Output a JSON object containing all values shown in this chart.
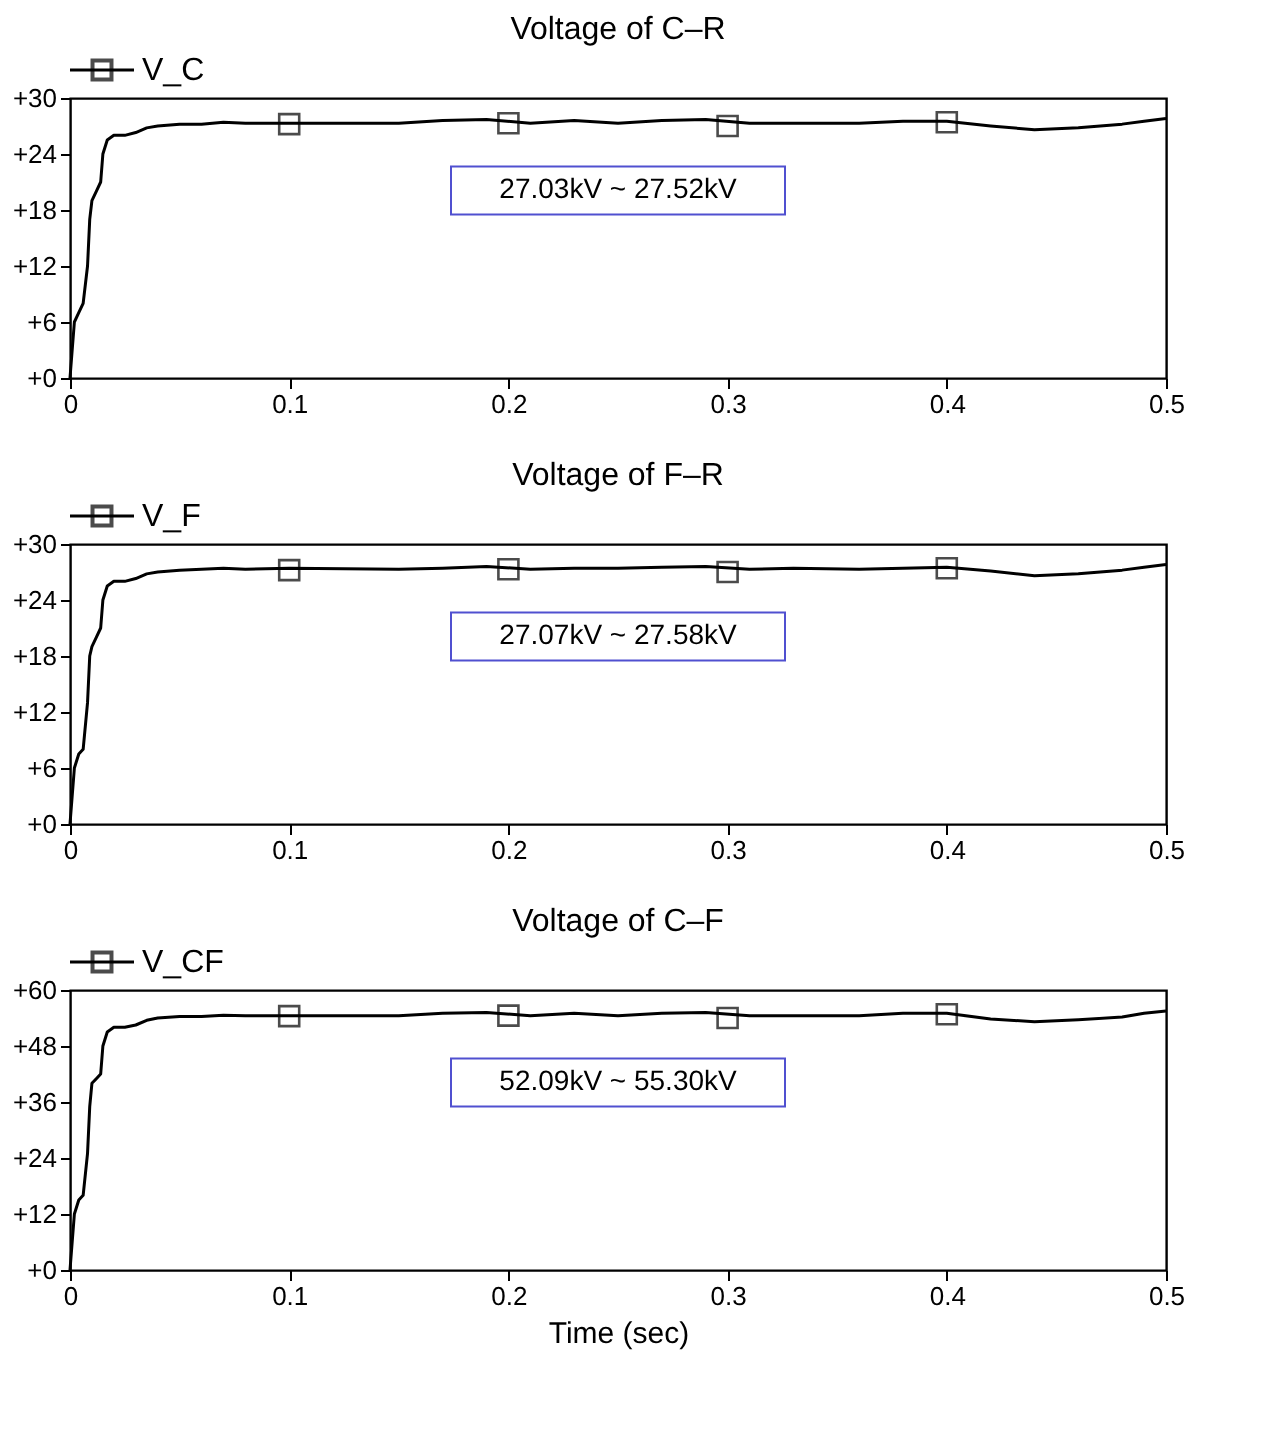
{
  "chart_data": [
    {
      "type": "line",
      "title": "Voltage of C–R",
      "legend": "top left",
      "grid": false,
      "annotations": [
        "27.03kV ~ 27.52kV"
      ],
      "xlim": [
        0,
        0.5
      ],
      "xticks": [
        0,
        0.1,
        0.2,
        0.3,
        0.4,
        0.5
      ],
      "ylim": [
        0,
        30
      ],
      "yticks": [
        {
          "value": 0,
          "label": "+0"
        },
        {
          "value": 6,
          "label": "+6"
        },
        {
          "value": 12,
          "label": "+12"
        },
        {
          "value": 18,
          "label": "+18"
        },
        {
          "value": 24,
          "label": "+24"
        },
        {
          "value": 30,
          "label": "+30"
        }
      ],
      "series": [
        {
          "name": "V_C",
          "color": "#000000",
          "marker": "none",
          "x": [
            0,
            0.001,
            0.002,
            0.004,
            0.006,
            0.008,
            0.009,
            0.01,
            0.012,
            0.014,
            0.015,
            0.017,
            0.02,
            0.025,
            0.03,
            0.035,
            0.04,
            0.05,
            0.06,
            0.07,
            0.08,
            0.1,
            0.15,
            0.17,
            0.19,
            0.21,
            0.23,
            0.25,
            0.27,
            0.29,
            0.31,
            0.33,
            0.36,
            0.38,
            0.4,
            0.42,
            0.44,
            0.46,
            0.48,
            0.49,
            0.5
          ],
          "values": [
            0,
            3,
            6,
            7,
            8,
            12,
            17,
            19,
            20,
            21,
            24,
            25.5,
            26,
            26,
            26.3,
            26.8,
            27,
            27.2,
            27.2,
            27.4,
            27.3,
            27.3,
            27.3,
            27.6,
            27.7,
            27.3,
            27.6,
            27.3,
            27.6,
            27.7,
            27.3,
            27.3,
            27.3,
            27.5,
            27.5,
            27,
            26.6,
            26.8,
            27.2,
            27.5,
            27.8
          ]
        },
        {
          "type": "scatter",
          "color": "#000000",
          "marker": "square",
          "x": [
            0.1,
            0.2,
            0.3,
            0.4
          ],
          "values": [
            27.2,
            27.3,
            27.0,
            27.4
          ]
        }
      ]
    },
    {
      "type": "line",
      "title": "Voltage of F–R",
      "legend": "top left",
      "grid": false,
      "annotations": [
        "27.07kV ~ 27.58kV"
      ],
      "xlim": [
        0,
        0.5
      ],
      "xticks": [
        0,
        0.1,
        0.2,
        0.3,
        0.4,
        0.5
      ],
      "ylim": [
        0,
        30
      ],
      "yticks": [
        {
          "value": 0,
          "label": "+0"
        },
        {
          "value": 6,
          "label": "+6"
        },
        {
          "value": 12,
          "label": "+12"
        },
        {
          "value": 18,
          "label": "+18"
        },
        {
          "value": 24,
          "label": "+24"
        },
        {
          "value": 30,
          "label": "+30"
        }
      ],
      "series": [
        {
          "name": "V_F",
          "color": "#000000",
          "marker": "none",
          "x": [
            0,
            0.001,
            0.002,
            0.004,
            0.006,
            0.008,
            0.009,
            0.01,
            0.012,
            0.014,
            0.015,
            0.017,
            0.02,
            0.025,
            0.03,
            0.035,
            0.04,
            0.05,
            0.06,
            0.07,
            0.08,
            0.1,
            0.15,
            0.17,
            0.19,
            0.21,
            0.23,
            0.25,
            0.27,
            0.29,
            0.31,
            0.33,
            0.36,
            0.38,
            0.4,
            0.42,
            0.44,
            0.46,
            0.48,
            0.49,
            0.5
          ],
          "values": [
            0,
            3,
            6,
            7.5,
            8,
            13,
            18,
            19,
            20,
            21,
            24,
            25.5,
            26,
            26,
            26.3,
            26.8,
            27,
            27.2,
            27.3,
            27.4,
            27.3,
            27.4,
            27.3,
            27.4,
            27.6,
            27.3,
            27.4,
            27.4,
            27.5,
            27.6,
            27.3,
            27.4,
            27.3,
            27.4,
            27.5,
            27.1,
            26.6,
            26.8,
            27.2,
            27.5,
            27.8
          ]
        },
        {
          "type": "scatter",
          "color": "#000000",
          "marker": "square",
          "x": [
            0.1,
            0.2,
            0.3,
            0.4
          ],
          "values": [
            27.2,
            27.3,
            27.0,
            27.4
          ]
        }
      ]
    },
    {
      "type": "line",
      "title": "Voltage of C–F",
      "xlabel": "Time (sec)",
      "legend": "top left",
      "grid": false,
      "annotations": [
        "52.09kV ~ 55.30kV"
      ],
      "xlim": [
        0,
        0.5
      ],
      "xticks": [
        0,
        0.1,
        0.2,
        0.3,
        0.4,
        0.5
      ],
      "ylim": [
        0,
        60
      ],
      "yticks": [
        {
          "value": 0,
          "label": "+0"
        },
        {
          "value": 12,
          "label": "+12"
        },
        {
          "value": 24,
          "label": "+24"
        },
        {
          "value": 36,
          "label": "+36"
        },
        {
          "value": 48,
          "label": "+48"
        },
        {
          "value": 60,
          "label": "+60"
        }
      ],
      "series": [
        {
          "name": "V_CF",
          "color": "#000000",
          "marker": "none",
          "x": [
            0,
            0.001,
            0.002,
            0.004,
            0.006,
            0.008,
            0.009,
            0.01,
            0.012,
            0.014,
            0.015,
            0.017,
            0.02,
            0.025,
            0.03,
            0.035,
            0.04,
            0.05,
            0.06,
            0.07,
            0.08,
            0.1,
            0.15,
            0.17,
            0.19,
            0.21,
            0.23,
            0.25,
            0.27,
            0.29,
            0.31,
            0.33,
            0.36,
            0.38,
            0.4,
            0.42,
            0.44,
            0.46,
            0.48,
            0.49,
            0.5
          ],
          "values": [
            0,
            6,
            12,
            15,
            16,
            25,
            35,
            40,
            41,
            42,
            48,
            51,
            52,
            52,
            52.5,
            53.5,
            54,
            54.3,
            54.3,
            54.6,
            54.5,
            54.5,
            54.5,
            55,
            55.2,
            54.5,
            55,
            54.5,
            55,
            55.2,
            54.5,
            54.5,
            54.5,
            55,
            55,
            53.8,
            53.2,
            53.6,
            54.2,
            55,
            55.5
          ]
        },
        {
          "type": "scatter",
          "color": "#000000",
          "marker": "square",
          "x": [
            0.1,
            0.2,
            0.3,
            0.4
          ],
          "values": [
            54.4,
            54.5,
            54.0,
            54.8
          ]
        }
      ]
    }
  ]
}
